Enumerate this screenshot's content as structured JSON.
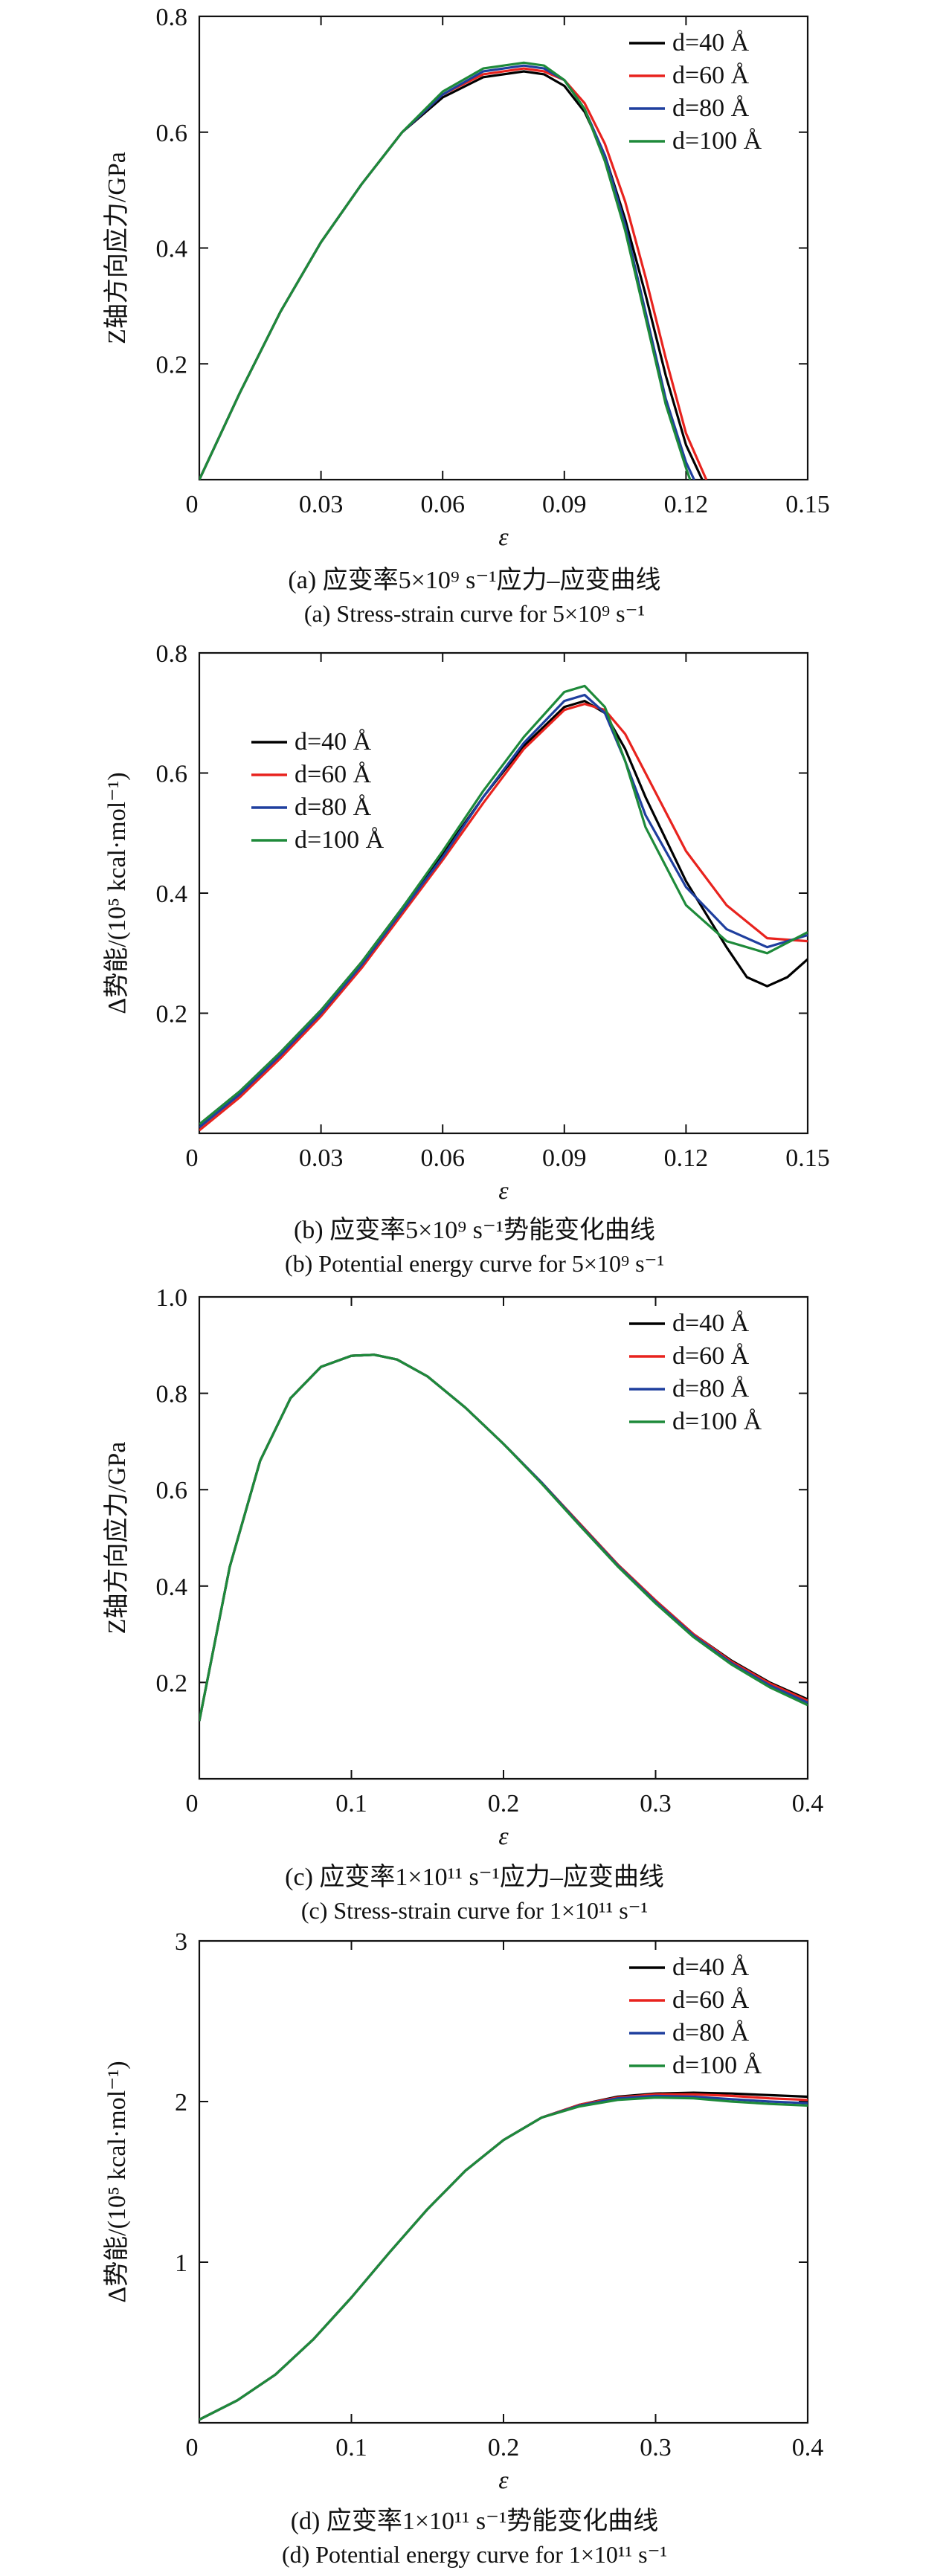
{
  "chart_data": [
    {
      "id": "a",
      "type": "line",
      "xlabel": "ε",
      "ylabel": "Z轴方向应力/GPa",
      "xlim": [
        0,
        0.15
      ],
      "ylim": [
        0,
        0.8
      ],
      "xticks": [
        0,
        0.03,
        0.06,
        0.09,
        0.12,
        0.15
      ],
      "xtick_labels": [
        "0",
        "0.03",
        "0.06",
        "0.09",
        "0.12",
        "0.15"
      ],
      "yticks": [
        0.2,
        0.4,
        0.6,
        0.8
      ],
      "ytick_labels": [
        "0.2",
        "0.4",
        "0.6",
        "0.8"
      ],
      "legend": "top-right",
      "caption_cn": "(a) 应变率5×10⁹ s⁻¹应力–应变曲线",
      "caption_en": "(a) Stress-strain curve for 5×10⁹ s⁻¹",
      "series": [
        {
          "name": "d=40 Å",
          "color": "#000000",
          "x": [
            0,
            0.01,
            0.02,
            0.03,
            0.04,
            0.05,
            0.06,
            0.07,
            0.08,
            0.085,
            0.09,
            0.095,
            0.1,
            0.105,
            0.11,
            0.115,
            0.12,
            0.124
          ],
          "y": [
            0,
            0.15,
            0.29,
            0.41,
            0.51,
            0.6,
            0.66,
            0.695,
            0.705,
            0.7,
            0.68,
            0.635,
            0.56,
            0.45,
            0.32,
            0.18,
            0.06,
            0
          ]
        },
        {
          "name": "d=60 Å",
          "color": "#e8231e",
          "x": [
            0,
            0.01,
            0.02,
            0.03,
            0.04,
            0.05,
            0.06,
            0.07,
            0.08,
            0.085,
            0.09,
            0.095,
            0.1,
            0.105,
            0.11,
            0.115,
            0.12,
            0.125
          ],
          "y": [
            0,
            0.15,
            0.29,
            0.41,
            0.51,
            0.6,
            0.665,
            0.7,
            0.71,
            0.705,
            0.69,
            0.65,
            0.58,
            0.48,
            0.35,
            0.21,
            0.08,
            0
          ]
        },
        {
          "name": "d=80 Å",
          "color": "#1f3f9e",
          "x": [
            0,
            0.01,
            0.02,
            0.03,
            0.04,
            0.05,
            0.06,
            0.07,
            0.08,
            0.085,
            0.09,
            0.095,
            0.1,
            0.105,
            0.11,
            0.115,
            0.12,
            0.122
          ],
          "y": [
            0,
            0.15,
            0.29,
            0.41,
            0.51,
            0.6,
            0.665,
            0.705,
            0.715,
            0.71,
            0.69,
            0.64,
            0.56,
            0.44,
            0.29,
            0.14,
            0.03,
            0
          ]
        },
        {
          "name": "d=100 Å",
          "color": "#1e8a3a",
          "x": [
            0,
            0.01,
            0.02,
            0.03,
            0.04,
            0.05,
            0.06,
            0.07,
            0.08,
            0.085,
            0.09,
            0.095,
            0.1,
            0.105,
            0.11,
            0.115,
            0.12,
            0.121
          ],
          "y": [
            0,
            0.15,
            0.29,
            0.41,
            0.51,
            0.6,
            0.67,
            0.71,
            0.72,
            0.715,
            0.69,
            0.64,
            0.55,
            0.43,
            0.28,
            0.13,
            0.02,
            0
          ]
        }
      ]
    },
    {
      "id": "b",
      "type": "line",
      "xlabel": "ε",
      "ylabel": "Δ势能/(10⁵ kcal·mol⁻¹)",
      "xlim": [
        0,
        0.15
      ],
      "ylim": [
        0,
        0.8
      ],
      "xticks": [
        0,
        0.03,
        0.06,
        0.09,
        0.12,
        0.15
      ],
      "xtick_labels": [
        "0",
        "0.03",
        "0.06",
        "0.09",
        "0.12",
        "0.15"
      ],
      "yticks": [
        0.2,
        0.4,
        0.6,
        0.8
      ],
      "ytick_labels": [
        "0.2",
        "0.4",
        "0.6",
        "0.8"
      ],
      "legend": "top-left",
      "caption_cn": "(b) 应变率5×10⁹ s⁻¹势能变化曲线",
      "caption_en": "(b) Potential energy curve for 5×10⁹ s⁻¹",
      "series": [
        {
          "name": "d=40 Å",
          "color": "#000000",
          "x": [
            0,
            0.01,
            0.02,
            0.03,
            0.04,
            0.05,
            0.06,
            0.07,
            0.08,
            0.09,
            0.095,
            0.1,
            0.105,
            0.11,
            0.12,
            0.13,
            0.135,
            0.14,
            0.145,
            0.15
          ],
          "y": [
            0.015,
            0.07,
            0.135,
            0.205,
            0.285,
            0.375,
            0.465,
            0.56,
            0.645,
            0.71,
            0.72,
            0.7,
            0.64,
            0.56,
            0.42,
            0.31,
            0.26,
            0.245,
            0.26,
            0.29
          ]
        },
        {
          "name": "d=60 Å",
          "color": "#e8231e",
          "x": [
            0,
            0.01,
            0.02,
            0.03,
            0.04,
            0.05,
            0.06,
            0.07,
            0.08,
            0.09,
            0.095,
            0.1,
            0.105,
            0.11,
            0.12,
            0.13,
            0.14,
            0.15
          ],
          "y": [
            0.005,
            0.06,
            0.125,
            0.195,
            0.275,
            0.365,
            0.455,
            0.55,
            0.64,
            0.705,
            0.715,
            0.705,
            0.665,
            0.6,
            0.47,
            0.38,
            0.325,
            0.32
          ]
        },
        {
          "name": "d=80 Å",
          "color": "#1f3f9e",
          "x": [
            0,
            0.01,
            0.02,
            0.03,
            0.04,
            0.05,
            0.06,
            0.07,
            0.08,
            0.09,
            0.095,
            0.1,
            0.105,
            0.11,
            0.12,
            0.13,
            0.14,
            0.15
          ],
          "y": [
            0.01,
            0.065,
            0.13,
            0.2,
            0.28,
            0.37,
            0.46,
            0.56,
            0.65,
            0.72,
            0.73,
            0.7,
            0.62,
            0.53,
            0.41,
            0.34,
            0.31,
            0.33
          ]
        },
        {
          "name": "d=100 Å",
          "color": "#1e8a3a",
          "x": [
            0,
            0.01,
            0.02,
            0.03,
            0.04,
            0.05,
            0.06,
            0.07,
            0.08,
            0.09,
            0.095,
            0.1,
            0.105,
            0.11,
            0.12,
            0.13,
            0.14,
            0.15
          ],
          "y": [
            0.015,
            0.07,
            0.135,
            0.205,
            0.285,
            0.375,
            0.47,
            0.57,
            0.66,
            0.735,
            0.745,
            0.71,
            0.62,
            0.51,
            0.38,
            0.32,
            0.3,
            0.335
          ]
        }
      ]
    },
    {
      "id": "c",
      "type": "line",
      "xlabel": "ε",
      "ylabel": "Z轴方向应力/GPa",
      "xlim": [
        0,
        0.4
      ],
      "ylim": [
        0,
        1.0
      ],
      "xticks": [
        0,
        0.1,
        0.2,
        0.3,
        0.4
      ],
      "xtick_labels": [
        "0",
        "0.1",
        "0.2",
        "0.3",
        "0.4"
      ],
      "yticks": [
        0.2,
        0.4,
        0.6,
        0.8,
        1.0
      ],
      "ytick_labels": [
        "0.2",
        "0.4",
        "0.6",
        "0.8",
        "1.0"
      ],
      "legend": "top-right",
      "caption_cn": "(c) 应变率1×10¹¹ s⁻¹应力–应变曲线",
      "caption_en": "(c) Stress-strain curve for 1×10¹¹ s⁻¹",
      "series": [
        {
          "name": "d=40 Å",
          "color": "#000000",
          "x": [
            0,
            0.02,
            0.04,
            0.06,
            0.08,
            0.1,
            0.115,
            0.13,
            0.15,
            0.175,
            0.2,
            0.225,
            0.25,
            0.275,
            0.3,
            0.325,
            0.35,
            0.375,
            0.4
          ],
          "y": [
            0.12,
            0.44,
            0.66,
            0.79,
            0.855,
            0.878,
            0.88,
            0.87,
            0.835,
            0.77,
            0.695,
            0.615,
            0.53,
            0.445,
            0.37,
            0.3,
            0.245,
            0.2,
            0.165
          ]
        },
        {
          "name": "d=60 Å",
          "color": "#e8231e",
          "x": [
            0,
            0.02,
            0.04,
            0.06,
            0.08,
            0.1,
            0.115,
            0.13,
            0.15,
            0.175,
            0.2,
            0.225,
            0.25,
            0.275,
            0.3,
            0.325,
            0.35,
            0.375,
            0.4
          ],
          "y": [
            0.12,
            0.44,
            0.66,
            0.79,
            0.855,
            0.878,
            0.88,
            0.87,
            0.835,
            0.77,
            0.695,
            0.615,
            0.53,
            0.445,
            0.37,
            0.3,
            0.243,
            0.198,
            0.162
          ]
        },
        {
          "name": "d=80 Å",
          "color": "#1f3f9e",
          "x": [
            0,
            0.02,
            0.04,
            0.06,
            0.08,
            0.1,
            0.115,
            0.13,
            0.15,
            0.175,
            0.2,
            0.225,
            0.25,
            0.275,
            0.3,
            0.325,
            0.35,
            0.375,
            0.4
          ],
          "y": [
            0.12,
            0.44,
            0.66,
            0.79,
            0.855,
            0.878,
            0.88,
            0.87,
            0.835,
            0.77,
            0.695,
            0.615,
            0.528,
            0.443,
            0.367,
            0.297,
            0.24,
            0.194,
            0.158
          ]
        },
        {
          "name": "d=100 Å",
          "color": "#1e8a3a",
          "x": [
            0,
            0.02,
            0.04,
            0.06,
            0.08,
            0.1,
            0.115,
            0.13,
            0.15,
            0.175,
            0.2,
            0.225,
            0.25,
            0.275,
            0.3,
            0.325,
            0.35,
            0.375,
            0.4
          ],
          "y": [
            0.12,
            0.44,
            0.66,
            0.79,
            0.855,
            0.878,
            0.88,
            0.87,
            0.835,
            0.77,
            0.695,
            0.613,
            0.526,
            0.441,
            0.364,
            0.294,
            0.237,
            0.19,
            0.153
          ]
        }
      ]
    },
    {
      "id": "d",
      "type": "line",
      "xlabel": "ε",
      "ylabel": "Δ势能/(10⁵ kcal·mol⁻¹)",
      "xlim": [
        0,
        0.4
      ],
      "ylim": [
        0,
        3
      ],
      "xticks": [
        0,
        0.1,
        0.2,
        0.3,
        0.4
      ],
      "xtick_labels": [
        "0",
        "0.1",
        "0.2",
        "0.3",
        "0.4"
      ],
      "yticks": [
        1,
        2,
        3
      ],
      "ytick_labels": [
        "1",
        "2",
        "3"
      ],
      "legend": "top-right",
      "caption_cn": "(d) 应变率1×10¹¹ s⁻¹势能变化曲线",
      "caption_en": "(d) Potential energy curve for 1×10¹¹ s⁻¹",
      "series": [
        {
          "name": "d=40 Å",
          "color": "#000000",
          "x": [
            0,
            0.025,
            0.05,
            0.075,
            0.1,
            0.125,
            0.15,
            0.175,
            0.2,
            0.225,
            0.25,
            0.275,
            0.3,
            0.325,
            0.35,
            0.375,
            0.4
          ],
          "y": [
            0.02,
            0.14,
            0.3,
            0.52,
            0.78,
            1.06,
            1.33,
            1.57,
            1.76,
            1.9,
            1.98,
            2.03,
            2.05,
            2.055,
            2.05,
            2.04,
            2.03
          ]
        },
        {
          "name": "d=60 Å",
          "color": "#e8231e",
          "x": [
            0,
            0.025,
            0.05,
            0.075,
            0.1,
            0.125,
            0.15,
            0.175,
            0.2,
            0.225,
            0.25,
            0.275,
            0.3,
            0.325,
            0.35,
            0.375,
            0.4
          ],
          "y": [
            0.02,
            0.14,
            0.3,
            0.52,
            0.78,
            1.06,
            1.33,
            1.57,
            1.76,
            1.9,
            1.98,
            2.025,
            2.045,
            2.045,
            2.035,
            2.02,
            2.01
          ]
        },
        {
          "name": "d=80 Å",
          "color": "#1f3f9e",
          "x": [
            0,
            0.025,
            0.05,
            0.075,
            0.1,
            0.125,
            0.15,
            0.175,
            0.2,
            0.225,
            0.25,
            0.275,
            0.3,
            0.325,
            0.35,
            0.375,
            0.4
          ],
          "y": [
            0.02,
            0.14,
            0.3,
            0.52,
            0.78,
            1.06,
            1.33,
            1.57,
            1.76,
            1.9,
            1.975,
            2.02,
            2.035,
            2.03,
            2.015,
            2.0,
            1.99
          ]
        },
        {
          "name": "d=100 Å",
          "color": "#1e8a3a",
          "x": [
            0,
            0.025,
            0.05,
            0.075,
            0.1,
            0.125,
            0.15,
            0.175,
            0.2,
            0.225,
            0.25,
            0.275,
            0.3,
            0.325,
            0.35,
            0.375,
            0.4
          ],
          "y": [
            0.02,
            0.14,
            0.3,
            0.52,
            0.78,
            1.06,
            1.33,
            1.57,
            1.76,
            1.9,
            1.97,
            2.01,
            2.025,
            2.02,
            2.0,
            1.985,
            1.975
          ]
        }
      ]
    }
  ]
}
